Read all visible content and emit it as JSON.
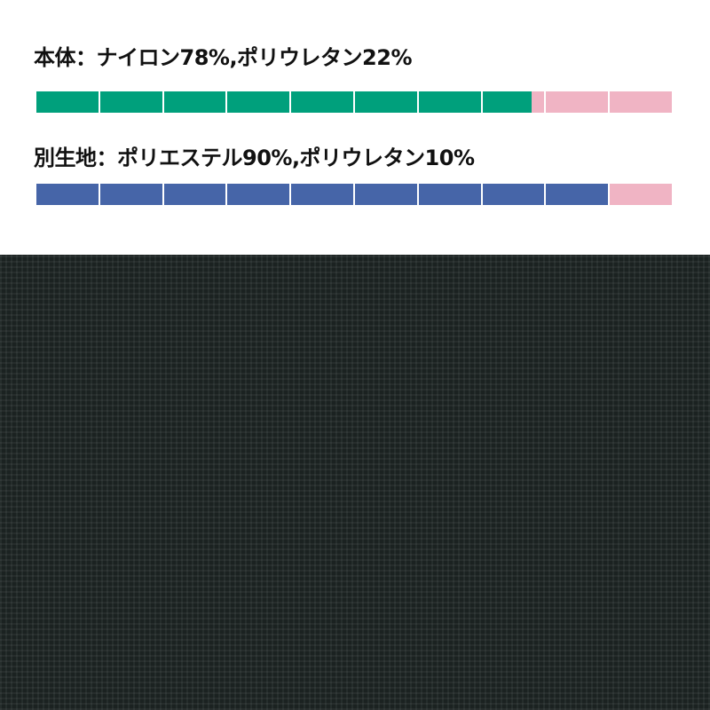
{
  "composition": [
    {
      "label": "本体：ナイロン78%,ポリウレタン22%",
      "parts": [
        {
          "material": "ナイロン",
          "percent": 78,
          "color": "#00a07c"
        },
        {
          "material": "ポリウレタン",
          "percent": 22,
          "color": "#f0b4c4"
        }
      ]
    },
    {
      "label": "別生地：ポリエステル90%,ポリウレタン10%",
      "parts": [
        {
          "material": "ポリエステル",
          "percent": 90,
          "color": "#4665a8"
        },
        {
          "material": "ポリウレタン",
          "percent": 10,
          "color": "#f0b4c4"
        }
      ]
    }
  ],
  "fabric_color": "#1d2524"
}
